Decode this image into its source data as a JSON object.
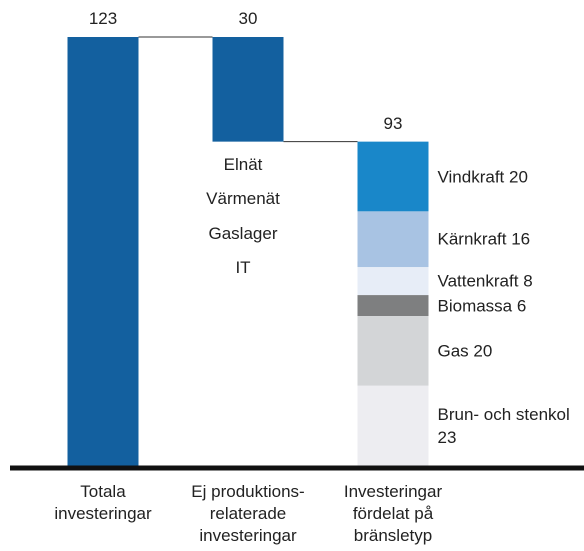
{
  "chart_data": {
    "type": "waterfall",
    "categories": [
      [
        "Totala",
        "investeringar"
      ],
      [
        "Ej produktions-",
        "relaterade",
        "investeringar"
      ],
      [
        "Investeringar",
        "fördelat på",
        "bränsletyp"
      ]
    ],
    "values": [
      123,
      30,
      93
    ],
    "measure": [
      "absolute",
      "decrease",
      "total"
    ],
    "color": "#13609f",
    "annotations": [
      "Elnät",
      "Värmenät",
      "Gaslager",
      "IT"
    ],
    "segments": [
      {
        "name": "Vindkraft",
        "color": "#1987c9",
        "value": 20
      },
      {
        "name": "Kärnkraft",
        "color": "#a8c3e3",
        "value": 16
      },
      {
        "name": "Vattenkraft",
        "color": "#e7edf7",
        "value": 8
      },
      {
        "name": "Biomassa",
        "color": "#7e7f80",
        "value": 6
      },
      {
        "name": "Gas",
        "color": "#d3d5d7",
        "value": 20
      },
      {
        "name": "Brun- och stenkol",
        "color": "#ededf1",
        "value": 23
      }
    ]
  }
}
